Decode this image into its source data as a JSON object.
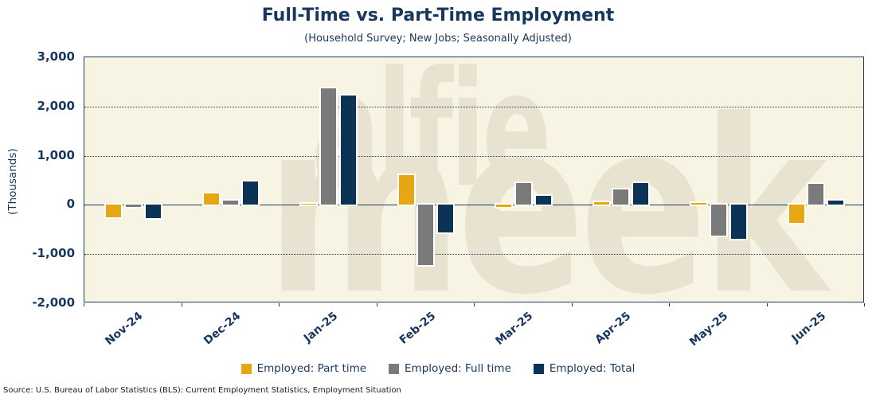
{
  "header": {
    "title": "Full-Time vs. Part-Time Employment",
    "subtitle": "(Household Survey; New Jobs; Seasonally Adjusted)"
  },
  "watermark": {
    "line1": "alfie",
    "line2": "meek"
  },
  "source_note": "Source: U.S. Bureau of Labor Statistics (BLS): Current Employment Statistics, Employment Situation",
  "colors": {
    "part_time": "#E7A614",
    "full_time": "#7A7A7A",
    "total": "#0B3356",
    "text_navy": "#17375D",
    "plot_background": "#F8F4E3",
    "watermark": "#E8E3D1"
  },
  "chart_data": {
    "type": "bar",
    "title": "Full-Time vs. Part-Time Employment",
    "subtitle": "(Household Survey; New Jobs; Seasonally Adjusted)",
    "xlabel": "",
    "ylabel": "(Thousands)",
    "ylim": [
      -2000,
      3000
    ],
    "grid": "horizontal-dotted",
    "legend_position": "bottom",
    "y_ticks": [
      {
        "value": 3000,
        "label": "3,000"
      },
      {
        "value": 2000,
        "label": "2,000"
      },
      {
        "value": 1000,
        "label": "1,000"
      },
      {
        "value": 0,
        "label": "0"
      },
      {
        "value": -1000,
        "label": "-1,000"
      },
      {
        "value": -2000,
        "label": "-2,000"
      }
    ],
    "categories": [
      "Nov-24",
      "Dec-24",
      "Jan-25",
      "Feb-25",
      "Mar-25",
      "Apr-25",
      "May-25",
      "Jun-25"
    ],
    "series": [
      {
        "name": "Employed: Part time",
        "color": "#E7A614",
        "values": [
          -250,
          230,
          15,
          600,
          -40,
          50,
          40,
          -360
        ]
      },
      {
        "name": "Employed: Full time",
        "color": "#7A7A7A",
        "values": [
          -50,
          80,
          2370,
          -1220,
          440,
          310,
          -620,
          430
        ]
      },
      {
        "name": "Employed: Total",
        "color": "#0B3356",
        "values": [
          -270,
          470,
          2230,
          -560,
          180,
          450,
          -690,
          90
        ]
      }
    ]
  }
}
